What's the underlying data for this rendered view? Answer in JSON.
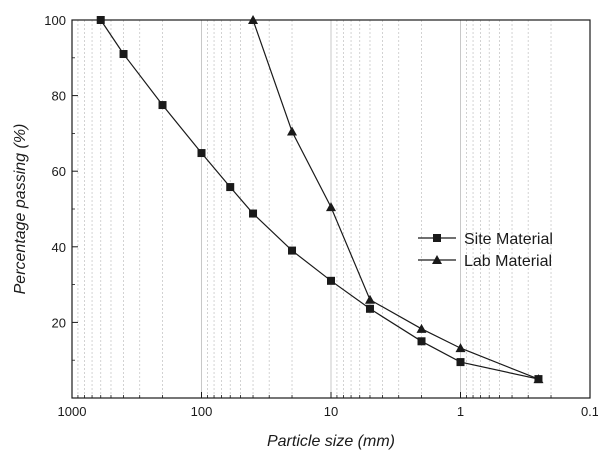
{
  "chart_data": {
    "type": "line",
    "x_scale": "log",
    "x_reversed": true,
    "xlabel": "Particle size (mm)",
    "ylabel": "Percentage passing (%)",
    "xlim": [
      1000,
      0.1
    ],
    "ylim": [
      0,
      100
    ],
    "x_ticks": [
      "1000",
      "100",
      "10",
      "1",
      "0.1"
    ],
    "y_ticks": [
      "20",
      "40",
      "60",
      "80",
      "100"
    ],
    "grid": "vertical log gridlines",
    "legend_position": "right-center",
    "series": [
      {
        "name": "Site Material",
        "marker": "square",
        "x": [
          600,
          400,
          200,
          100,
          60,
          40,
          20,
          10,
          5,
          2,
          1,
          0.25
        ],
        "y": [
          100,
          91,
          77.5,
          64.8,
          55.8,
          48.8,
          39,
          31,
          23.6,
          15,
          9.5,
          5
        ]
      },
      {
        "name": "Lab Material",
        "marker": "triangle",
        "x": [
          40,
          20,
          10,
          5,
          2,
          1,
          0.25
        ],
        "y": [
          100,
          70.5,
          50.5,
          26,
          18.3,
          13.2,
          5
        ]
      }
    ],
    "colors": {
      "line": "#1a1a1a",
      "grid": "#c8c8c8",
      "frame": "#1a1a1a"
    }
  }
}
